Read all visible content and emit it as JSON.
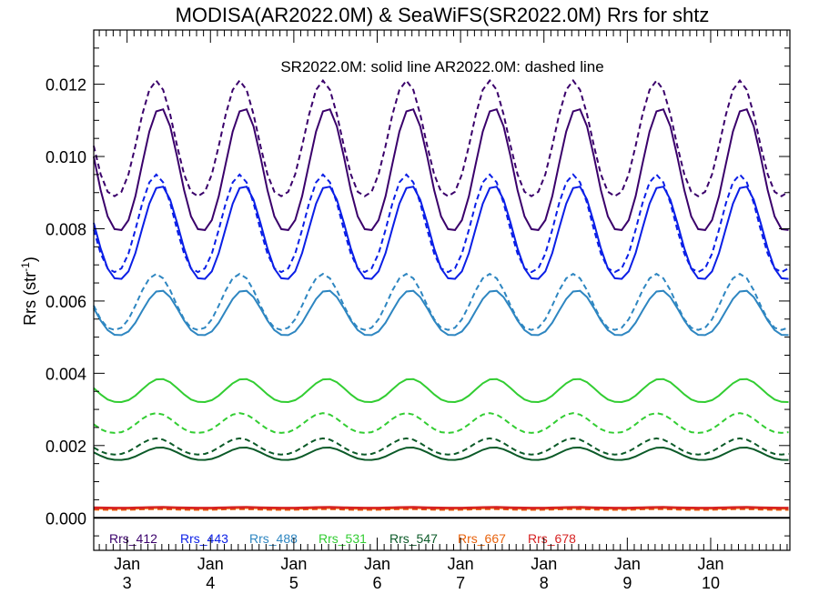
{
  "chart_data": {
    "type": "line",
    "title": "MODISA(AR2022.0M) & SeaWiFS(SR2022.0M)  Rrs for shtz",
    "subtitle": "SR2022.0M: solid line   AR2022.0M: dashed line",
    "ylabel_main": "Rrs (str",
    "ylabel_sup": "-1",
    "ylabel_close": ")",
    "xlabel": "",
    "xlim": [
      2.6,
      10.95
    ],
    "ylim": [
      -0.0009,
      0.0135
    ],
    "y_ticks": [
      {
        "value": 0.0,
        "label": "0.000"
      },
      {
        "value": 0.002,
        "label": "0.002"
      },
      {
        "value": 0.004,
        "label": "0.004"
      },
      {
        "value": 0.006,
        "label": "0.006"
      },
      {
        "value": 0.008,
        "label": "0.008"
      },
      {
        "value": 0.01,
        "label": "0.010"
      },
      {
        "value": 0.012,
        "label": "0.012"
      }
    ],
    "x_ticks": [
      {
        "value": 3,
        "month": "Jan",
        "year": "3"
      },
      {
        "value": 4,
        "month": "Jan",
        "year": "4"
      },
      {
        "value": 5,
        "month": "Jan",
        "year": "5"
      },
      {
        "value": 6,
        "month": "Jan",
        "year": "6"
      },
      {
        "value": 7,
        "month": "Jan",
        "year": "7"
      },
      {
        "value": 8,
        "month": "Jan",
        "year": "8"
      },
      {
        "value": 9,
        "month": "Jan",
        "year": "9"
      },
      {
        "value": 10,
        "month": "Jan",
        "year": "10"
      }
    ],
    "zero_line": 0.0,
    "series": [
      {
        "name": "Rrs_412",
        "color": "#3a006b",
        "solid": {
          "base": 0.00795,
          "amp": 0.0034,
          "peak": 0.4
        },
        "dashed": {
          "base": 0.0089,
          "amp": 0.0032,
          "peak": 0.35
        }
      },
      {
        "name": "Rrs_443",
        "color": "#0a1ee6",
        "solid": {
          "base": 0.0066,
          "amp": 0.0026,
          "peak": 0.4
        },
        "dashed": {
          "base": 0.0068,
          "amp": 0.0027,
          "peak": 0.35
        }
      },
      {
        "name": "Rrs_488",
        "color": "#2e86c1",
        "solid": {
          "base": 0.00505,
          "amp": 0.00125,
          "peak": 0.4
        },
        "dashed": {
          "base": 0.0052,
          "amp": 0.00155,
          "peak": 0.35
        }
      },
      {
        "name": "Rrs_531",
        "color": "#32cd32",
        "solid": {
          "base": 0.0032,
          "amp": 0.00065,
          "peak": 0.4
        },
        "dashed": {
          "base": 0.00235,
          "amp": 0.00055,
          "peak": 0.35
        }
      },
      {
        "name": "Rrs_547",
        "color": "#0b5a28",
        "solid": {
          "base": 0.0016,
          "amp": 0.00035,
          "peak": 0.4
        },
        "dashed": {
          "base": 0.00175,
          "amp": 0.00045,
          "peak": 0.35
        }
      },
      {
        "name": "Rrs_667",
        "color": "#e8620c",
        "solid": {
          "base": 0.00025,
          "amp": 2e-05,
          "peak": 0.4
        },
        "dashed": {
          "base": 0.00022,
          "amp": 2e-05,
          "peak": 0.35
        }
      },
      {
        "name": "Rrs_678",
        "color": "#d62222",
        "solid": {
          "base": 0.00028,
          "amp": 2e-05,
          "peak": 0.4
        },
        "dashed": {
          "base": 0.00025,
          "amp": 2e-05,
          "peak": 0.35
        }
      }
    ]
  }
}
